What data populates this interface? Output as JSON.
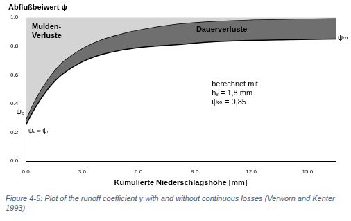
{
  "chart_data": {
    "type": "line",
    "y_label": "Abflußbeiwert ψ",
    "x_label": "Kumulierte Niederschlagshöhe [mm]",
    "caption": "Figure 4-5:    Plot of the runoff coefficient y with and without continuous losses (Verworn and Kenter 1993)",
    "x": [
      0,
      0.5,
      1,
      1.5,
      2,
      3,
      4,
      5,
      6,
      8,
      10,
      12,
      14,
      16.5
    ],
    "series": [
      {
        "color": "#6f6f6f",
        "values": [
          0.25,
          0.37,
          0.47,
          0.55,
          0.61,
          0.69,
          0.74,
          0.77,
          0.79,
          0.81,
          0.83,
          0.84,
          0.845,
          0.85
        ]
      },
      {
        "color": "#d4d4d4",
        "values": [
          0.28,
          0.42,
          0.53,
          0.62,
          0.69,
          0.78,
          0.84,
          0.88,
          0.91,
          0.95,
          0.97,
          0.98,
          0.985,
          0.99
        ]
      }
    ],
    "xlim": [
      0,
      16.5
    ],
    "xticks": [
      {
        "value": 0,
        "label": "0.0"
      },
      {
        "value": 3,
        "label": "3.0"
      },
      {
        "value": 6,
        "label": "6.0"
      },
      {
        "value": 9,
        "label": "9.0"
      },
      {
        "value": 12,
        "label": "12.0"
      },
      {
        "value": 15,
        "label": "15.0"
      }
    ],
    "ylim": [
      0,
      1
    ],
    "yticks": [
      {
        "value": 0,
        "label": "0.0"
      },
      0.2,
      0.4,
      0.6,
      0.8,
      {
        "value": 1,
        "label": "1.0"
      }
    ],
    "grid": false,
    "annotations": [
      "Mulden-\nVerluste",
      "Dauerverluste",
      "berechnet mit\nhᵥ = 1,8 mm\nψ∞ = 0,85"
    ],
    "curve_labels": [
      "ψ∞",
      "ψ₀",
      "ψₑ = ψ₀"
    ]
  }
}
